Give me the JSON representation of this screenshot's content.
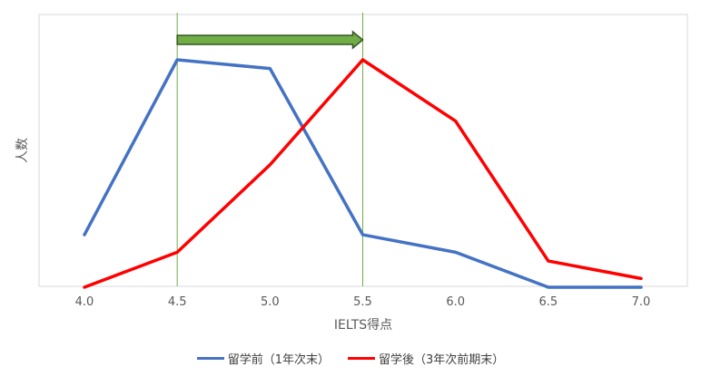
{
  "chart_data": {
    "type": "line",
    "title": "",
    "xlabel": "IELTS得点",
    "ylabel": "人数",
    "x": [
      "4.0",
      "4.5",
      "5.0",
      "5.5",
      "6.0",
      "6.5",
      "7.0"
    ],
    "ylim": [
      0,
      13
    ],
    "series": [
      {
        "name": "留学前（1年次末）",
        "color": "#4472C4",
        "values": [
          3,
          13,
          12.5,
          3,
          2,
          0,
          0
        ]
      },
      {
        "name": "留学後（3年次前期末）",
        "color": "#FF0000",
        "values": [
          0,
          2,
          7,
          13,
          9.5,
          1.5,
          0.5
        ]
      }
    ],
    "annotations": {
      "markers_at_x": [
        "4.5",
        "5.5"
      ],
      "marker_color": "#70AD47",
      "arrow": {
        "from": "4.5",
        "to": "5.5",
        "fill": "#70AD47",
        "stroke": "#375623"
      }
    },
    "grid": false,
    "legend_position": "bottom"
  }
}
